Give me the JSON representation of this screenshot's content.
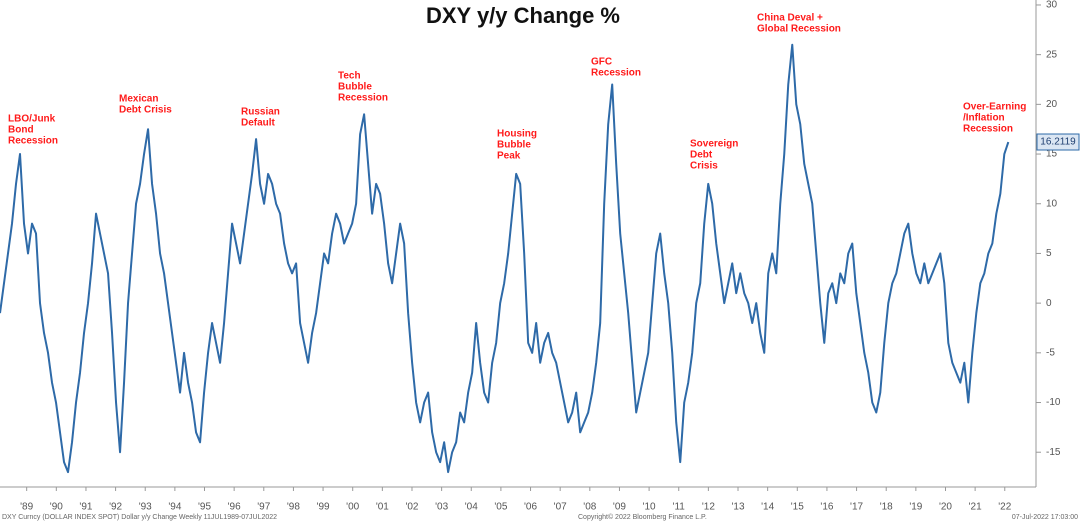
{
  "chart_data": {
    "type": "line",
    "title": "DXY y/y Change %",
    "color": "#2e6aa8",
    "xlim": [
      1988.6,
      2023.52
    ],
    "ylim": [
      -18.5,
      30.5
    ],
    "yticks": [
      -15,
      -10,
      -5,
      0,
      5,
      10,
      15,
      20,
      25,
      30
    ],
    "xticks": [
      {
        "value": 1989.5,
        "label": "'89"
      },
      {
        "value": 1990.5,
        "label": "'90"
      },
      {
        "value": 1991.5,
        "label": "'91"
      },
      {
        "value": 1992.5,
        "label": "'92"
      },
      {
        "value": 1993.5,
        "label": "'93"
      },
      {
        "value": 1994.5,
        "label": "'94"
      },
      {
        "value": 1995.5,
        "label": "'95"
      },
      {
        "value": 1996.5,
        "label": "'96"
      },
      {
        "value": 1997.5,
        "label": "'97"
      },
      {
        "value": 1998.5,
        "label": "'98"
      },
      {
        "value": 1999.5,
        "label": "'99"
      },
      {
        "value": 2000.5,
        "label": "'00"
      },
      {
        "value": 2001.5,
        "label": "'01"
      },
      {
        "value": 2002.5,
        "label": "'02"
      },
      {
        "value": 2003.5,
        "label": "'03"
      },
      {
        "value": 2004.5,
        "label": "'04"
      },
      {
        "value": 2005.5,
        "label": "'05"
      },
      {
        "value": 2006.5,
        "label": "'06"
      },
      {
        "value": 2007.5,
        "label": "'07"
      },
      {
        "value": 2008.5,
        "label": "'08"
      },
      {
        "value": 2009.5,
        "label": "'09"
      },
      {
        "value": 2010.5,
        "label": "'10"
      },
      {
        "value": 2011.5,
        "label": "'11"
      },
      {
        "value": 2012.5,
        "label": "'12"
      },
      {
        "value": 2013.5,
        "label": "'13"
      },
      {
        "value": 2014.5,
        "label": "'14"
      },
      {
        "value": 2015.5,
        "label": "'15"
      },
      {
        "value": 2016.5,
        "label": "'16"
      },
      {
        "value": 2017.5,
        "label": "'17"
      },
      {
        "value": 2018.5,
        "label": "'18"
      },
      {
        "value": 2019.5,
        "label": "'19"
      },
      {
        "value": 2020.5,
        "label": "'20"
      },
      {
        "value": 2021.5,
        "label": "'21"
      },
      {
        "value": 2022.5,
        "label": "'22"
      }
    ],
    "grid": false,
    "x": [
      1988.6,
      1988.735,
      1988.87,
      1989.005,
      1989.14,
      1989.275,
      1989.41,
      1989.545,
      1989.68,
      1989.815,
      1989.95,
      1990.085,
      1990.22,
      1990.355,
      1990.49,
      1990.625,
      1990.76,
      1990.895,
      1991.03,
      1991.165,
      1991.3,
      1991.435,
      1991.57,
      1991.705,
      1991.84,
      1991.975,
      1992.11,
      1992.245,
      1992.38,
      1992.515,
      1992.65,
      1992.785,
      1992.92,
      1993.055,
      1993.19,
      1993.325,
      1993.46,
      1993.595,
      1993.73,
      1993.865,
      1994.0,
      1994.135,
      1994.27,
      1994.405,
      1994.54,
      1994.675,
      1994.81,
      1994.945,
      1995.08,
      1995.215,
      1995.35,
      1995.485,
      1995.62,
      1995.755,
      1995.89,
      1996.025,
      1996.16,
      1996.295,
      1996.43,
      1996.565,
      1996.7,
      1996.835,
      1996.97,
      1997.105,
      1997.24,
      1997.375,
      1997.51,
      1997.645,
      1997.78,
      1997.915,
      1998.05,
      1998.185,
      1998.32,
      1998.455,
      1998.59,
      1998.725,
      1998.86,
      1998.995,
      1999.13,
      1999.265,
      1999.4,
      1999.535,
      1999.67,
      1999.805,
      1999.94,
      2000.075,
      2000.21,
      2000.345,
      2000.48,
      2000.615,
      2000.75,
      2000.885,
      2001.02,
      2001.155,
      2001.29,
      2001.425,
      2001.56,
      2001.695,
      2001.83,
      2001.965,
      2002.1,
      2002.235,
      2002.37,
      2002.505,
      2002.64,
      2002.775,
      2002.91,
      2003.045,
      2003.18,
      2003.315,
      2003.45,
      2003.585,
      2003.72,
      2003.855,
      2003.99,
      2004.125,
      2004.26,
      2004.395,
      2004.53,
      2004.665,
      2004.8,
      2004.935,
      2005.07,
      2005.205,
      2005.34,
      2005.475,
      2005.61,
      2005.745,
      2005.88,
      2006.015,
      2006.15,
      2006.285,
      2006.42,
      2006.555,
      2006.69,
      2006.825,
      2006.96,
      2007.095,
      2007.23,
      2007.365,
      2007.5,
      2007.635,
      2007.77,
      2007.905,
      2008.04,
      2008.175,
      2008.31,
      2008.445,
      2008.58,
      2008.715,
      2008.85,
      2008.985,
      2009.12,
      2009.255,
      2009.39,
      2009.525,
      2009.66,
      2009.795,
      2009.93,
      2010.065,
      2010.2,
      2010.335,
      2010.47,
      2010.605,
      2010.74,
      2010.875,
      2011.01,
      2011.145,
      2011.28,
      2011.415,
      2011.55,
      2011.685,
      2011.82,
      2011.955,
      2012.09,
      2012.225,
      2012.36,
      2012.495,
      2012.63,
      2012.765,
      2012.9,
      2013.035,
      2013.17,
      2013.305,
      2013.44,
      2013.575,
      2013.71,
      2013.845,
      2013.98,
      2014.115,
      2014.25,
      2014.385,
      2014.52,
      2014.655,
      2014.79,
      2014.925,
      2015.06,
      2015.195,
      2015.33,
      2015.465,
      2015.6,
      2015.735,
      2015.87,
      2016.005,
      2016.14,
      2016.275,
      2016.41,
      2016.545,
      2016.68,
      2016.815,
      2016.95,
      2017.085,
      2017.22,
      2017.355,
      2017.49,
      2017.625,
      2017.76,
      2017.895,
      2018.03,
      2018.165,
      2018.3,
      2018.435,
      2018.57,
      2018.705,
      2018.84,
      2018.975,
      2019.11,
      2019.245,
      2019.38,
      2019.515,
      2019.65,
      2019.785,
      2019.92,
      2020.055,
      2020.19,
      2020.325,
      2020.46,
      2020.595,
      2020.73,
      2020.865,
      2021.0,
      2021.135,
      2021.27,
      2021.405,
      2021.54,
      2021.675,
      2021.81,
      2021.945,
      2022.08,
      2022.215,
      2022.35,
      2022.485,
      2022.62
    ],
    "values": [
      -1,
      2,
      5,
      8,
      12,
      15,
      8,
      5,
      8,
      7,
      0,
      -3,
      -5,
      -8,
      -10,
      -13,
      -16,
      -17,
      -14,
      -10,
      -7,
      -3,
      0,
      4,
      9,
      7,
      5,
      3,
      -3,
      -10,
      -15,
      -8,
      0,
      5,
      10,
      12,
      15,
      17.5,
      12,
      9,
      5,
      3,
      0,
      -3,
      -6,
      -9,
      -5,
      -8,
      -10,
      -13,
      -14,
      -9,
      -5,
      -2,
      -4,
      -6,
      -2,
      3,
      8,
      6,
      4,
      7,
      10,
      13,
      16.5,
      12,
      10,
      13,
      12,
      10,
      9,
      6,
      4,
      3,
      4,
      -2,
      -4,
      -6,
      -3,
      -1,
      2,
      5,
      4,
      7,
      9,
      8,
      6,
      7,
      8,
      10,
      17,
      19,
      14,
      9,
      12,
      11,
      8,
      4,
      2,
      5,
      8,
      6,
      -1,
      -6,
      -10,
      -12,
      -10,
      -9,
      -13,
      -15,
      -16,
      -14,
      -17,
      -15,
      -14,
      -11,
      -12,
      -9,
      -7,
      -2,
      -6,
      -9,
      -10,
      -6,
      -4,
      0,
      2,
      5,
      9,
      13,
      12,
      5,
      -4,
      -5,
      -2,
      -6,
      -4,
      -3,
      -5,
      -6,
      -8,
      -10,
      -12,
      -11,
      -9,
      -13,
      -12,
      -11,
      -9,
      -6,
      -2,
      10,
      18,
      22,
      14,
      7,
      3,
      -1,
      -6,
      -11,
      -9,
      -7,
      -5,
      0,
      5,
      7,
      3,
      0,
      -5,
      -12,
      -16,
      -10,
      -8,
      -5,
      0,
      2,
      8,
      12,
      10,
      6,
      3,
      0,
      2,
      4,
      1,
      3,
      1,
      0,
      -2,
      0,
      -3,
      -5,
      3,
      5,
      3,
      10,
      15,
      22,
      26,
      20,
      18,
      14,
      12,
      10,
      5,
      0,
      -4,
      1,
      2,
      0,
      3,
      2,
      5,
      6,
      1,
      -2,
      -5,
      -7,
      -10,
      -11,
      -9,
      -4,
      0,
      2,
      3,
      5,
      7,
      8,
      5,
      3,
      2,
      4,
      2,
      3,
      4,
      5,
      2,
      -4,
      -6,
      -7,
      -8,
      -6,
      -10,
      -5,
      -1,
      2,
      3,
      5,
      6,
      9,
      11,
      15,
      16.2119
    ],
    "annotations": [
      [
        "LBO/Junk",
        "Bond",
        "Recession"
      ],
      [
        "Mexican",
        "Debt Crisis"
      ],
      [
        "Russian",
        "Default"
      ],
      [
        "Tech",
        "Bubble",
        "Recession"
      ],
      [
        "Housing",
        "Bubble",
        "Peak"
      ],
      [
        "GFC",
        "Recession"
      ],
      [
        "Sovereign",
        "Debt",
        "Crisis"
      ],
      [
        "China Deval +",
        "Global Recession"
      ],
      [
        "Over-Earning",
        "/Inflation",
        "Recession"
      ]
    ],
    "footer_left": "DXY Curncy (DOLLAR INDEX SPOT) Dollar y/y Change   Weekly 11JUL1989-07JUL2022",
    "footer_center": "Copyright© 2022 Bloomberg Finance L.P.",
    "footer_right": "07-Jul-2022 17:03:00"
  }
}
